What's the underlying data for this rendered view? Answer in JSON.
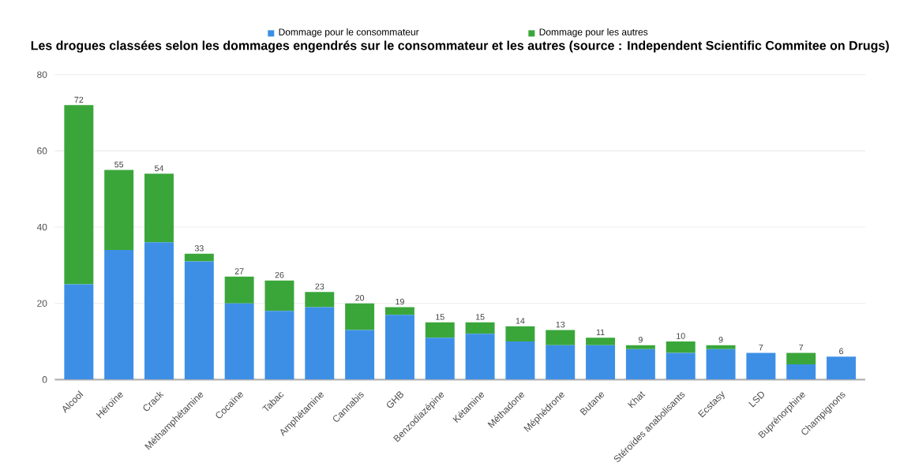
{
  "chart_data": {
    "type": "bar",
    "stacked": true,
    "title": "Les drogues classées selon les dommages engendrés sur le consommateur et les autres (source : Independent Scientific Commitee on Drugs)",
    "categories": [
      "Alcool",
      "Héroïne",
      "Crack",
      "Méthamphétamine",
      "Cocaïne",
      "Tabac",
      "Amphétamine",
      "Cannabis",
      "GHB",
      "Benzodiazépine",
      "Kétamine",
      "Méthadone",
      "Méphédrone",
      "Butane",
      "Khat",
      "Stéroïdes anabolisants",
      "Ecstasy",
      "LSD",
      "Buprénorphine",
      "Champignons"
    ],
    "series": [
      {
        "name": "Dommage pour le consommateur",
        "color": "#3d8fe6",
        "values": [
          25,
          34,
          36,
          31,
          20,
          18,
          19,
          13,
          17,
          11,
          12,
          10,
          9,
          9,
          8,
          7,
          8,
          7,
          4,
          6
        ]
      },
      {
        "name": "Dommage pour les autres",
        "color": "#3aa63a",
        "values": [
          47,
          21,
          18,
          2,
          7,
          8,
          4,
          7,
          2,
          4,
          3,
          4,
          4,
          2,
          1,
          3,
          1,
          0,
          3,
          0
        ]
      }
    ],
    "totals": [
      "72",
      "55",
      "54",
      "33",
      "27",
      "26",
      "23",
      "20",
      "19",
      "15",
      "15",
      "14",
      "13",
      "11",
      "9",
      "10",
      "9",
      "7",
      "7",
      "6"
    ],
    "ylim": [
      0,
      80
    ],
    "yticks": [
      0,
      20,
      40,
      60,
      80
    ],
    "grid": "y",
    "legend": "top"
  }
}
